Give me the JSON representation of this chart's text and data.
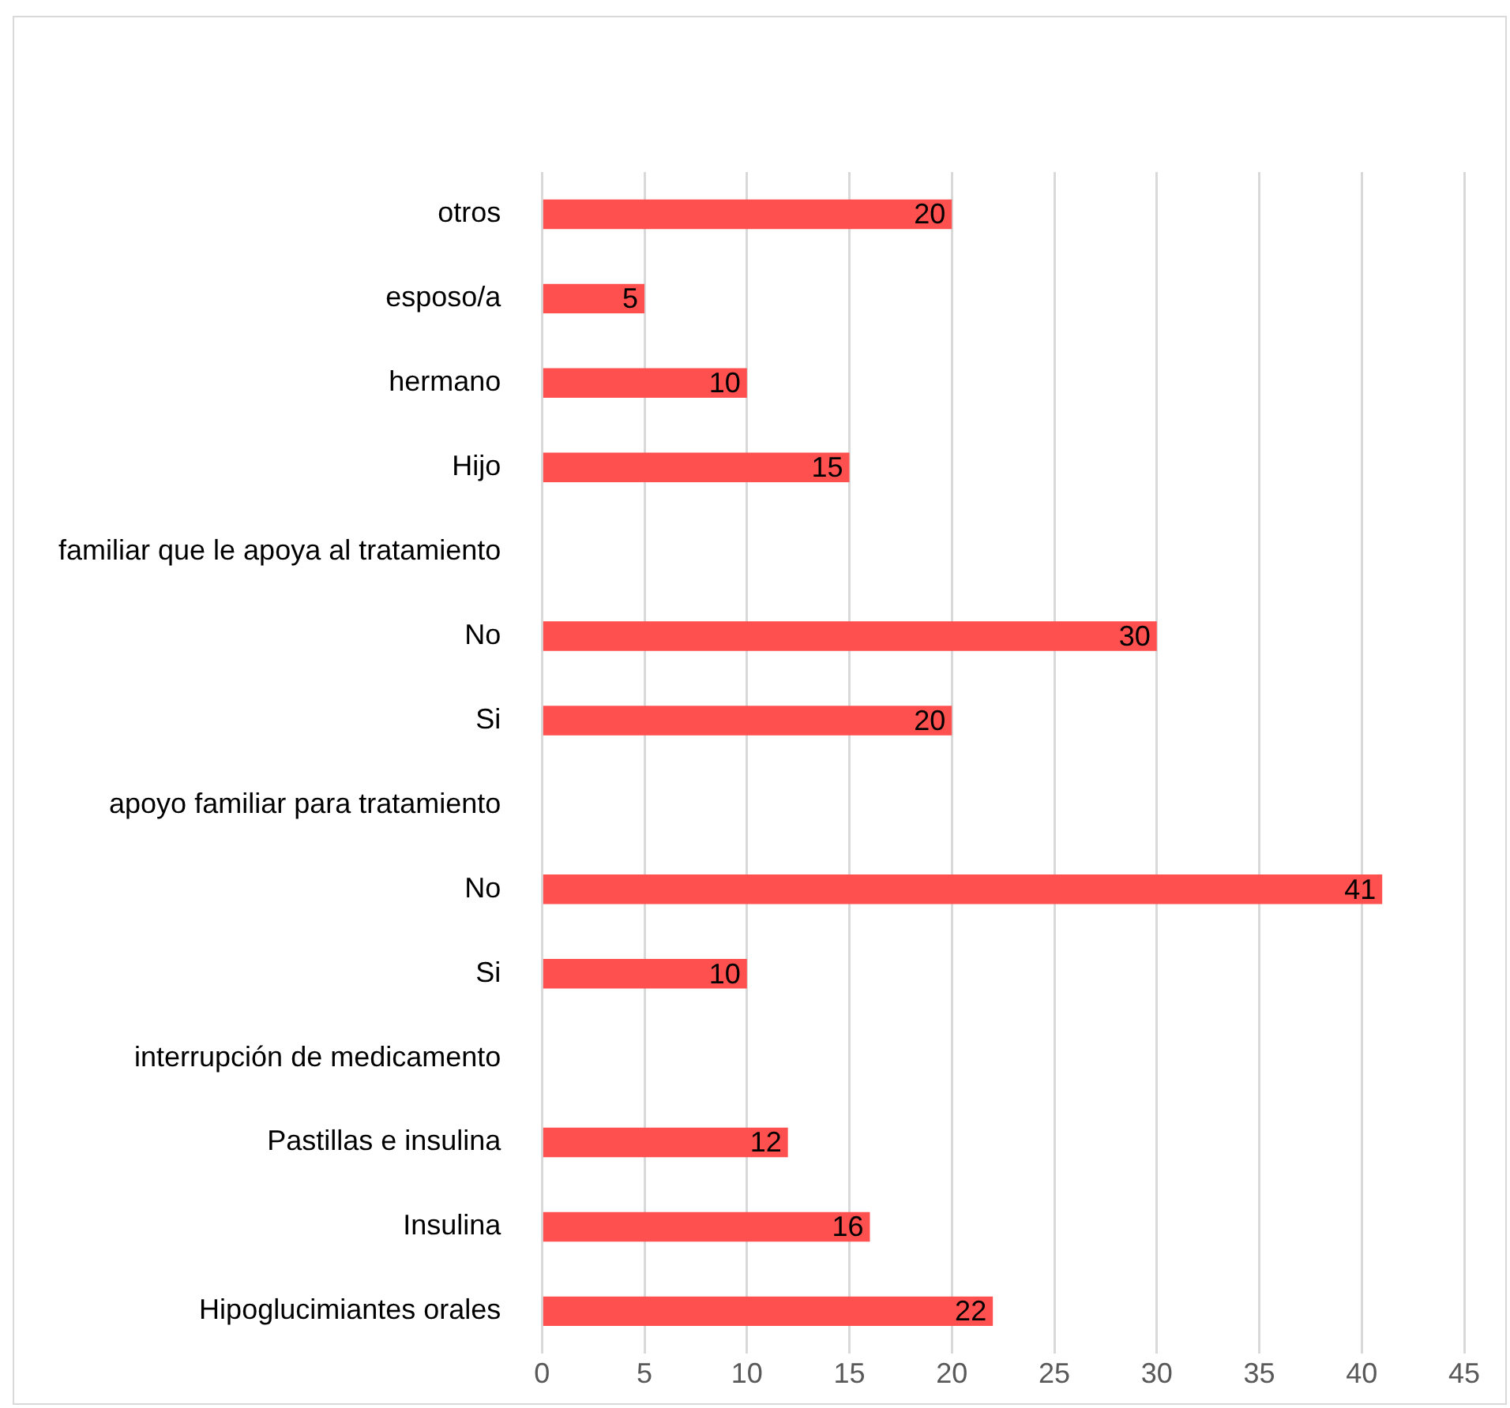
{
  "chart_data": {
    "type": "bar",
    "orientation": "horizontal",
    "categories": [
      "otros",
      "esposo/a",
      "hermano",
      "Hijo",
      "familiar que le apoya al tratamiento",
      "No",
      "Si",
      "apoyo familiar para tratamiento",
      "No",
      "Si",
      "interrupción de medicamento",
      "Pastillas e insulina",
      "Insulina",
      "Hipoglucimiantes orales"
    ],
    "values": [
      20,
      5,
      10,
      15,
      null,
      30,
      20,
      null,
      41,
      10,
      null,
      12,
      16,
      22
    ],
    "color": "#ff5050",
    "xlim": [
      0,
      45
    ],
    "xticks": [
      0,
      5,
      10,
      15,
      20,
      25,
      30,
      35,
      40,
      45
    ],
    "grid": "x",
    "data_labels": true
  }
}
